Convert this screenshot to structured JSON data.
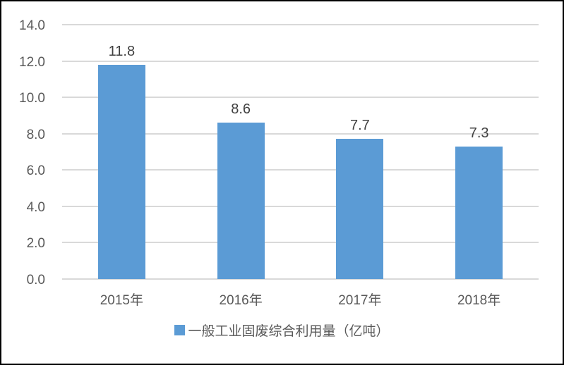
{
  "chart_data": {
    "type": "bar",
    "categories": [
      "2015年",
      "2016年",
      "2017年",
      "2018年"
    ],
    "values": [
      11.8,
      8.6,
      7.7,
      7.3
    ],
    "value_labels": [
      "11.8",
      "8.6",
      "7.7",
      "7.3"
    ],
    "series_name": "一般工业固废综合利用量（亿吨）",
    "legend": "一般工业固废综合利用量（亿吨）",
    "title": "",
    "xlabel": "",
    "ylabel": "",
    "ylim": [
      0,
      14
    ],
    "ytick_step": 2,
    "ytick_labels": [
      "0.0",
      "2.0",
      "4.0",
      "6.0",
      "8.0",
      "10.0",
      "12.0",
      "14.0"
    ],
    "grid": "horizontal",
    "legend_position": "bottom-center",
    "colors": {
      "bar": "#5B9BD5",
      "gridline": "#D9D9D9",
      "axis_label": "#595959",
      "data_label": "#404040",
      "border": "#000000",
      "background": "#FFFFFF"
    }
  }
}
